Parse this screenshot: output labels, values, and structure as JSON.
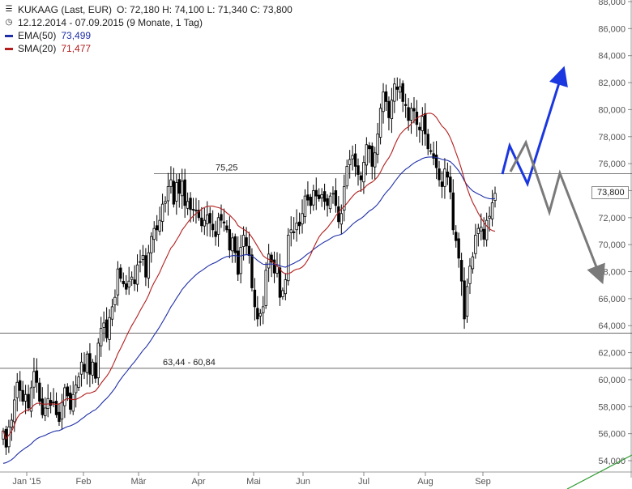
{
  "header": {
    "symbol": "KUKAAG (Last, EUR)",
    "ohlc": "O: 72,180  H: 74,100  L: 71,340  C: 73,800",
    "period": "12.12.2014 - 07.09.2015 (9 Monate, 1 Tag)"
  },
  "legend": {
    "ema_label": "EMA(50)",
    "ema_value": "73,499",
    "ema_color": "#1f2fa8",
    "sma_label": "SMA(20)",
    "sma_value": "71,477",
    "sma_color": "#b31d1d"
  },
  "last_price_tag": "73,800",
  "icons": {
    "chart_icon": "candlestick-chart-icon",
    "clock_icon": "clock-icon"
  },
  "chart_data": {
    "type": "candlestick",
    "y_axis": {
      "min": 54,
      "max": 88,
      "step": 2,
      "side": "right",
      "tick_labels": [
        "54,000",
        "56,000",
        "58,000",
        "60,000",
        "62,000",
        "64,000",
        "66,000",
        "68,000",
        "70,000",
        "72,000",
        "74,000",
        "76,000",
        "78,000",
        "80,000",
        "82,000",
        "84,000",
        "86,000",
        "88,000"
      ]
    },
    "x_axis": {
      "tick_labels": [
        "Jan '15",
        "Feb",
        "Mär",
        "Apr",
        "Mai",
        "Jun",
        "Jul",
        "Aug",
        "Sep"
      ]
    },
    "grid": false,
    "horizontal_lines": [
      {
        "value": 75.25,
        "label": "75,25"
      },
      {
        "value": 63.44,
        "label": ""
      },
      {
        "value": 60.84,
        "label": "63,44 - 60,84"
      }
    ],
    "candles_close": [
      56.2,
      55.0,
      56.5,
      57.0,
      58.5,
      59.8,
      59.2,
      58.4,
      58.9,
      57.9,
      59.4,
      60.6,
      59.8,
      58.4,
      57.4,
      57.9,
      58.6,
      58.1,
      58.3,
      57.4,
      56.9,
      58.3,
      59.4,
      58.8,
      57.8,
      58.9,
      59.6,
      60.2,
      61.3,
      60.6,
      61.9,
      60.4,
      61.3,
      60.1,
      62.7,
      63.8,
      64.2,
      63.1,
      64.6,
      65.4,
      66.1,
      68.2,
      67.5,
      67.1,
      66.7,
      67.3,
      67.6,
      67.1,
      68.5,
      68.7,
      69.2,
      67.6,
      69.4,
      70.6,
      71.2,
      71.1,
      71.8,
      73.0,
      73.2,
      74.3,
      74.8,
      73.0,
      74.6,
      73.8,
      74.7,
      72.9,
      73.2,
      72.6,
      72.6,
      72.5,
      72.0,
      71.4,
      71.8,
      72.2,
      71.6,
      71.1,
      70.6,
      72.0,
      71.8,
      71.6,
      71.1,
      69.6,
      70.5,
      69.4,
      67.8,
      69.8,
      70.7,
      69.9,
      69.2,
      66.8,
      65.4,
      64.5,
      64.9,
      65.4,
      68.1,
      69.3,
      68.7,
      67.9,
      68.4,
      66.1,
      66.6,
      67.4,
      70.7,
      71.1,
      70.9,
      71.6,
      71.4,
      72.3,
      73.6,
      73.3,
      72.9,
      74.0,
      73.6,
      73.4,
      73.7,
      73.2,
      72.9,
      73.6,
      73.8,
      72.9,
      71.7,
      72.3,
      74.3,
      75.8,
      76.3,
      76.6,
      75.8,
      75.2,
      74.8,
      76.1,
      77.4,
      77.1,
      75.8,
      76.8,
      78.2,
      80.1,
      81.3,
      80.6,
      79.4,
      80.7,
      81.9,
      81.5,
      81.7,
      80.6,
      80.3,
      79.2,
      80.1,
      79.9,
      78.9,
      78.5,
      79.5,
      78.2,
      77.1,
      76.9,
      76.4,
      75.7,
      74.8,
      74.3,
      75.6,
      75.0,
      73.9,
      71.1,
      70.3,
      69.0,
      67.3,
      64.5,
      66.9,
      68.4,
      69.1,
      70.7,
      71.2,
      71.3,
      70.4,
      71.8,
      72.1,
      73.1,
      73.8
    ],
    "series": [
      {
        "name": "EMA(50)",
        "last": 73.499,
        "color": "#1f2fa8"
      },
      {
        "name": "SMA(20)",
        "last": 71.477,
        "color": "#b31d1d"
      }
    ],
    "annotations": [
      "blue-up-scenario-arrow",
      "gray-down-scenario-arrow"
    ]
  }
}
